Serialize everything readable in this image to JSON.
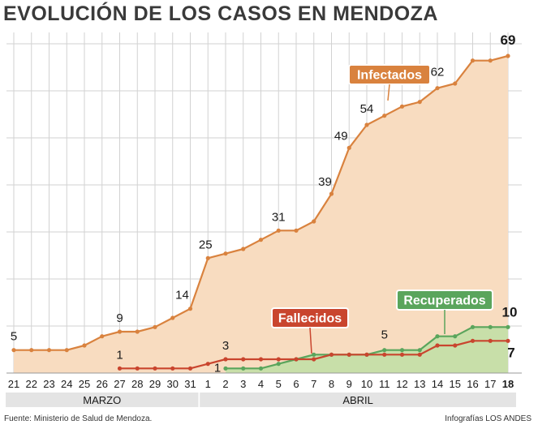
{
  "chart_data": {
    "type": "area",
    "title": "EVOLUCIÓN DE LOS CASOS EN MENDOZA",
    "categories": [
      "21",
      "22",
      "23",
      "24",
      "25",
      "26",
      "27",
      "28",
      "29",
      "30",
      "31",
      "1",
      "2",
      "3",
      "4",
      "5",
      "6",
      "7",
      "8",
      "9",
      "10",
      "11",
      "12",
      "13",
      "14",
      "15",
      "16",
      "17",
      "18"
    ],
    "month_groups": [
      {
        "label": "MARZO",
        "from_index": 0,
        "to_index": 10
      },
      {
        "label": "ABRIL",
        "from_index": 11,
        "to_index": 28
      }
    ],
    "ylim": [
      0,
      72
    ],
    "series": [
      {
        "name": "Infectados",
        "color": "#d9823e",
        "fill": "#f8dcc0",
        "label_box_color": "#d9823e",
        "values": [
          5,
          5,
          5,
          5,
          6,
          8,
          9,
          9,
          10,
          12,
          14,
          25,
          26,
          27,
          29,
          31,
          31,
          33,
          39,
          49,
          54,
          56,
          58,
          59,
          62,
          63,
          68,
          68,
          69
        ]
      },
      {
        "name": "Recuperados",
        "color": "#5aa55c",
        "fill": "#c8dfa9",
        "label_box_color": "#5aa55c",
        "values": [
          null,
          null,
          null,
          null,
          null,
          null,
          null,
          null,
          null,
          null,
          null,
          null,
          1,
          1,
          1,
          2,
          3,
          4,
          4,
          4,
          4,
          5,
          5,
          5,
          8,
          8,
          10,
          10,
          10
        ]
      },
      {
        "name": "Fallecidos",
        "color": "#c9452e",
        "fill": null,
        "label_box_color": "#c9452e",
        "values": [
          null,
          null,
          null,
          null,
          null,
          null,
          1,
          1,
          1,
          1,
          1,
          2,
          3,
          3,
          3,
          3,
          3,
          3,
          4,
          4,
          4,
          4,
          4,
          4,
          6,
          6,
          7,
          7,
          7
        ]
      }
    ],
    "annotations": [
      {
        "series": "Infectados",
        "index": 0,
        "text": "5"
      },
      {
        "series": "Infectados",
        "index": 6,
        "text": "9"
      },
      {
        "series": "Infectados",
        "index": 10,
        "text": "14"
      },
      {
        "series": "Infectados",
        "index": 11,
        "text": "25"
      },
      {
        "series": "Infectados",
        "index": 15,
        "text": "31"
      },
      {
        "series": "Infectados",
        "index": 18,
        "text": "39"
      },
      {
        "series": "Infectados",
        "index": 19,
        "text": "49"
      },
      {
        "series": "Infectados",
        "index": 20,
        "text": "54"
      },
      {
        "series": "Infectados",
        "index": 24,
        "text": "62"
      },
      {
        "series": "Infectados",
        "index": 28,
        "text": "69"
      },
      {
        "series": "Fallecidos",
        "index": 6,
        "text": "1"
      },
      {
        "series": "Fallecidos",
        "index": 12,
        "text": "3"
      },
      {
        "series": "Fallecidos",
        "index": 28,
        "text": "7"
      },
      {
        "series": "Recuperados",
        "index": 12,
        "text": "1"
      },
      {
        "series": "Recuperados",
        "index": 21,
        "text": "5"
      },
      {
        "series": "Recuperados",
        "index": 28,
        "text": "10"
      }
    ]
  },
  "footer": {
    "source": "Fuente: Ministerio de Salud de Mendoza.",
    "credit": "Infografías LOS ANDES"
  }
}
